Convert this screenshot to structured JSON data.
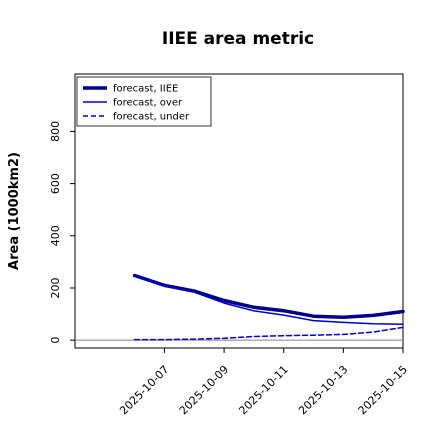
{
  "chart_data": {
    "type": "line",
    "title": "IIEE area metric",
    "xlabel": "",
    "ylabel": "Area (1000km2)",
    "x": [
      "2025-10-06",
      "2025-10-07",
      "2025-10-08",
      "2025-10-09",
      "2025-10-10",
      "2025-10-11",
      "2025-10-12",
      "2025-10-13",
      "2025-10-14",
      "2025-10-15"
    ],
    "xticks": [
      "2025-10-07",
      "2025-10-09",
      "2025-10-11",
      "2025-10-13",
      "2025-10-15"
    ],
    "highlight_tick": "2025-10-07",
    "yticks": [
      0,
      200,
      400,
      600,
      800
    ],
    "ylim": [
      -30,
      1020
    ],
    "xlim": [
      "2025-10-04",
      "2025-10-15"
    ],
    "legend_position": "top-left",
    "series": [
      {
        "name": "forecast, IIEE",
        "style": "solid-thick",
        "color": "#00008b",
        "values": [
          248,
          210,
          188,
          152,
          126,
          113,
          92,
          88,
          95,
          110
        ]
      },
      {
        "name": "forecast, over",
        "style": "solid",
        "color": "#0000cd",
        "values": [
          246,
          208,
          184,
          142,
          112,
          96,
          75,
          68,
          63,
          61
        ]
      },
      {
        "name": "forecast, under",
        "style": "dashed",
        "color": "#0000cd",
        "values": [
          2,
          2,
          4,
          7,
          14,
          17,
          19,
          22,
          31,
          49
        ]
      }
    ],
    "baseline": 0,
    "colors": {
      "highlight_tick": "#228b22",
      "baseline": "#808080"
    }
  }
}
